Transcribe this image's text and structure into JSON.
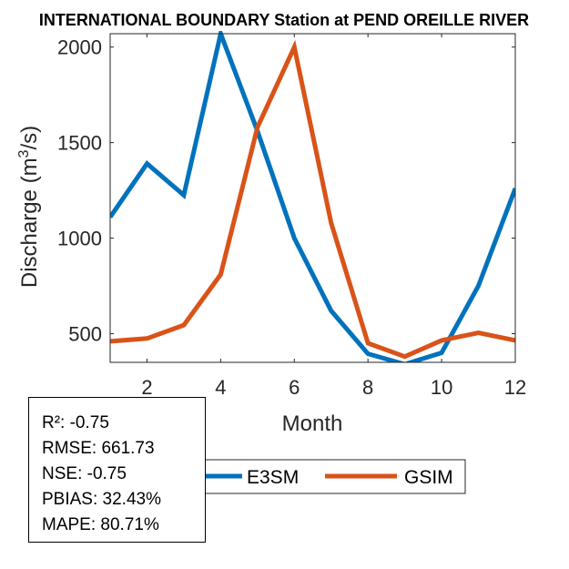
{
  "chart_data": {
    "type": "line",
    "title": "INTERNATIONAL BOUNDARY  Station at  PEND OREILLE RIVER",
    "xlabel": "Month",
    "ylabel_prefix": "Discharge (m",
    "ylabel_sup": "3",
    "ylabel_suffix": "/s)",
    "xlim": [
      1,
      12
    ],
    "ylim": [
      350,
      2070
    ],
    "xticks": [
      2,
      4,
      6,
      8,
      10,
      12
    ],
    "yticks": [
      500,
      1000,
      1500,
      2000
    ],
    "x": [
      1,
      2,
      3,
      4,
      5,
      6,
      7,
      8,
      9,
      10,
      11,
      12
    ],
    "series": [
      {
        "name": "E3SM",
        "color": "#0072BD",
        "values": [
          1110,
          1390,
          1225,
          2070,
          1560,
          1000,
          620,
          395,
          340,
          400,
          750,
          1260
        ]
      },
      {
        "name": "GSIM",
        "color": "#D95319",
        "values": [
          460,
          475,
          545,
          810,
          1580,
          2000,
          1080,
          450,
          380,
          465,
          505,
          465
        ]
      }
    ],
    "stats": [
      "R²: -0.75",
      "RMSE: 661.73",
      "NSE: -0.75",
      "PBIAS: 32.43%",
      "MAPE: 80.71%"
    ]
  }
}
